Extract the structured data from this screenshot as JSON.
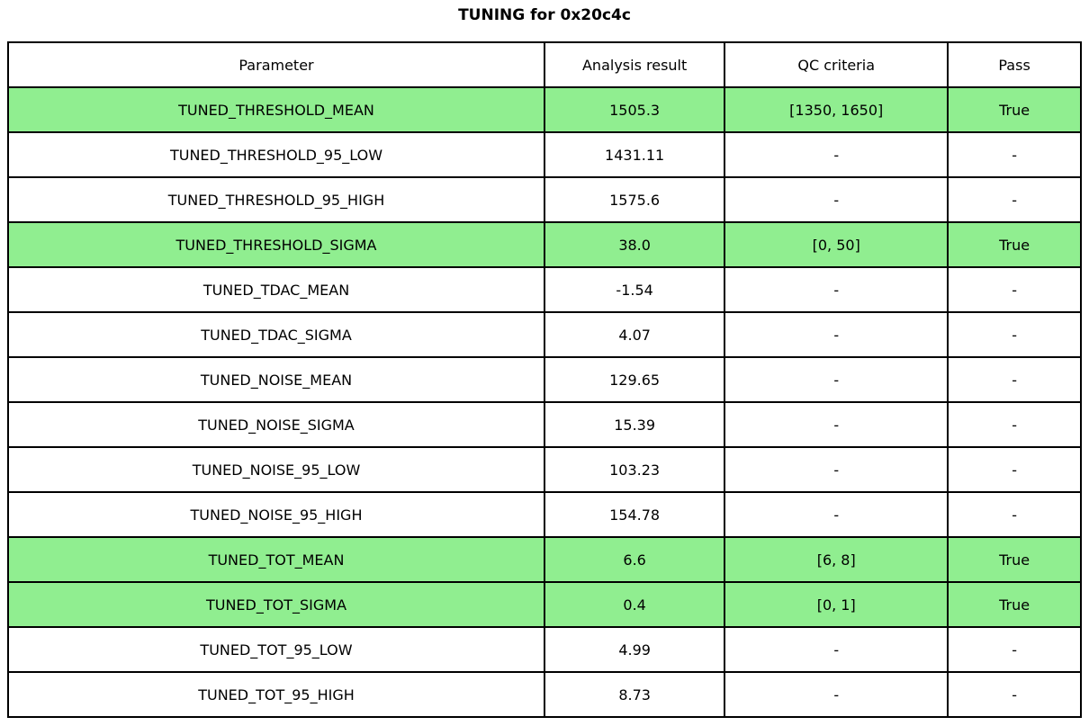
{
  "title": "TUNING for 0x20c4c",
  "colors": {
    "highlight_green": "#90EE90",
    "border": "#000000",
    "text": "#000000",
    "background": "#FFFFFF"
  },
  "chart_data": {
    "type": "table",
    "title": "TUNING for 0x20c4c",
    "columns": [
      "Parameter",
      "Analysis result",
      "QC criteria",
      "Pass"
    ],
    "rows": [
      {
        "cells": [
          "TUNED_THRESHOLD_MEAN",
          "1505.3",
          "[1350, 1650]",
          "True"
        ],
        "highlight": true
      },
      {
        "cells": [
          "TUNED_THRESHOLD_95_LOW",
          "1431.11",
          "-",
          "-"
        ],
        "highlight": false
      },
      {
        "cells": [
          "TUNED_THRESHOLD_95_HIGH",
          "1575.6",
          "-",
          "-"
        ],
        "highlight": false
      },
      {
        "cells": [
          "TUNED_THRESHOLD_SIGMA",
          "38.0",
          "[0, 50]",
          "True"
        ],
        "highlight": true
      },
      {
        "cells": [
          "TUNED_TDAC_MEAN",
          "-1.54",
          "-",
          "-"
        ],
        "highlight": false
      },
      {
        "cells": [
          "TUNED_TDAC_SIGMA",
          "4.07",
          "-",
          "-"
        ],
        "highlight": false
      },
      {
        "cells": [
          "TUNED_NOISE_MEAN",
          "129.65",
          "-",
          "-"
        ],
        "highlight": false
      },
      {
        "cells": [
          "TUNED_NOISE_SIGMA",
          "15.39",
          "-",
          "-"
        ],
        "highlight": false
      },
      {
        "cells": [
          "TUNED_NOISE_95_LOW",
          "103.23",
          "-",
          "-"
        ],
        "highlight": false
      },
      {
        "cells": [
          "TUNED_NOISE_95_HIGH",
          "154.78",
          "-",
          "-"
        ],
        "highlight": false
      },
      {
        "cells": [
          "TUNED_TOT_MEAN",
          "6.6",
          "[6, 8]",
          "True"
        ],
        "highlight": true
      },
      {
        "cells": [
          "TUNED_TOT_SIGMA",
          "0.4",
          "[0, 1]",
          "True"
        ],
        "highlight": true
      },
      {
        "cells": [
          "TUNED_TOT_95_LOW",
          "4.99",
          "-",
          "-"
        ],
        "highlight": false
      },
      {
        "cells": [
          "TUNED_TOT_95_HIGH",
          "8.73",
          "-",
          "-"
        ],
        "highlight": false
      }
    ],
    "layout": {
      "legend": "none",
      "grid": true,
      "highlight_color": "#90EE90"
    }
  }
}
